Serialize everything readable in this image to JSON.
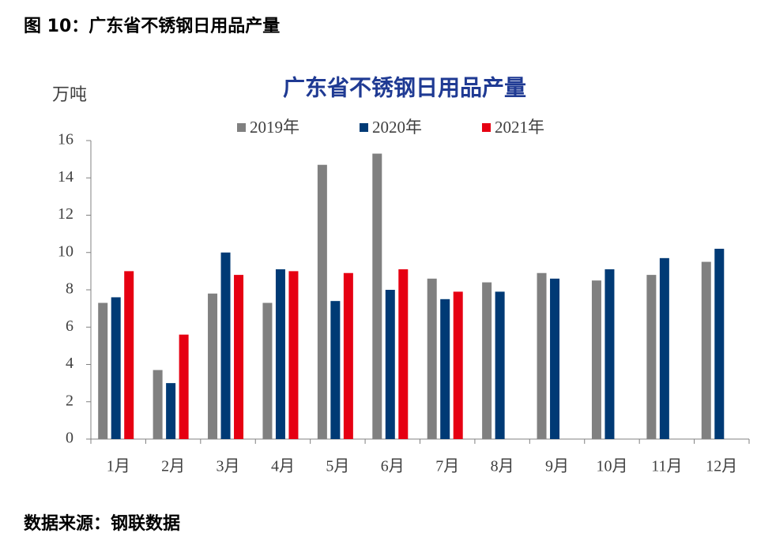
{
  "header": "图 10：广东省不锈钢日用品产量",
  "source": "数据来源：钢联数据",
  "chart_data": {
    "type": "bar",
    "title": "广东省不锈钢日用品产量",
    "y_label": "万吨",
    "categories": [
      "1月",
      "2月",
      "3月",
      "4月",
      "5月",
      "6月",
      "7月",
      "8月",
      "9月",
      "10月",
      "11月",
      "12月"
    ],
    "series": [
      {
        "name": "2019年",
        "color": "#808080",
        "values": [
          7.3,
          3.7,
          7.8,
          7.3,
          14.7,
          15.3,
          8.6,
          8.4,
          8.9,
          8.5,
          8.8,
          9.5
        ]
      },
      {
        "name": "2020年",
        "color": "#003a75",
        "values": [
          7.6,
          3.0,
          10.0,
          9.1,
          7.4,
          8.0,
          7.5,
          7.9,
          8.6,
          9.1,
          9.7,
          10.2
        ]
      },
      {
        "name": "2021年",
        "color": "#e60012",
        "values": [
          9.0,
          5.6,
          8.8,
          9.0,
          8.9,
          9.1,
          7.9,
          null,
          null,
          null,
          null,
          null
        ]
      }
    ],
    "ylim": [
      0,
      16
    ],
    "yticks": [
      0,
      2,
      4,
      6,
      8,
      10,
      12,
      14,
      16
    ],
    "grid": false,
    "legend": "top"
  }
}
